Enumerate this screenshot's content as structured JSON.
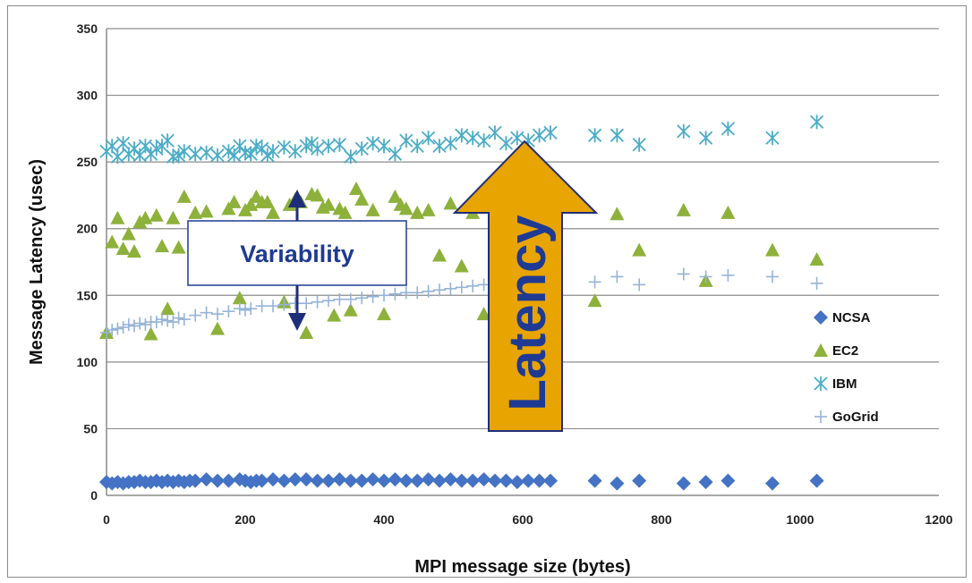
{
  "chart_data": {
    "type": "scatter",
    "title": "",
    "xlabel": "MPI message size (bytes)",
    "ylabel": "Message Latency (usec)",
    "xlim": [
      0,
      1200
    ],
    "ylim": [
      0,
      350
    ],
    "x_ticks": [
      "0",
      "200",
      "400",
      "600",
      "800",
      "1000",
      "1200"
    ],
    "y_ticks": [
      "0",
      "50",
      "100",
      "150",
      "200",
      "250",
      "300",
      "350"
    ],
    "grid": "horizontal",
    "legend_position": "right",
    "series": [
      {
        "name": "NCSA",
        "marker": "diamond",
        "color": "#4472C4",
        "points": [
          [
            0,
            10
          ],
          [
            8,
            9
          ],
          [
            16,
            10
          ],
          [
            24,
            9
          ],
          [
            32,
            10
          ],
          [
            40,
            10
          ],
          [
            48,
            11
          ],
          [
            56,
            10
          ],
          [
            64,
            10
          ],
          [
            72,
            11
          ],
          [
            80,
            10
          ],
          [
            88,
            11
          ],
          [
            96,
            10
          ],
          [
            104,
            11
          ],
          [
            112,
            10
          ],
          [
            120,
            11
          ],
          [
            128,
            11
          ],
          [
            144,
            12
          ],
          [
            160,
            11
          ],
          [
            176,
            11
          ],
          [
            192,
            12
          ],
          [
            200,
            11
          ],
          [
            208,
            10
          ],
          [
            216,
            11
          ],
          [
            224,
            11
          ],
          [
            240,
            12
          ],
          [
            256,
            11
          ],
          [
            272,
            12
          ],
          [
            288,
            12
          ],
          [
            304,
            11
          ],
          [
            320,
            11
          ],
          [
            336,
            12
          ],
          [
            352,
            11
          ],
          [
            368,
            11
          ],
          [
            384,
            12
          ],
          [
            400,
            11
          ],
          [
            416,
            12
          ],
          [
            432,
            11
          ],
          [
            448,
            11
          ],
          [
            464,
            12
          ],
          [
            480,
            11
          ],
          [
            496,
            12
          ],
          [
            512,
            11
          ],
          [
            528,
            11
          ],
          [
            544,
            12
          ],
          [
            560,
            11
          ],
          [
            576,
            11
          ],
          [
            592,
            10
          ],
          [
            608,
            11
          ],
          [
            624,
            11
          ],
          [
            640,
            11
          ],
          [
            704,
            11
          ],
          [
            736,
            9
          ],
          [
            768,
            11
          ],
          [
            832,
            9
          ],
          [
            864,
            10
          ],
          [
            896,
            11
          ],
          [
            960,
            9
          ],
          [
            1024,
            11
          ]
        ]
      },
      {
        "name": "EC2",
        "marker": "triangle",
        "color": "#8DB13B",
        "points": [
          [
            0,
            122
          ],
          [
            8,
            190
          ],
          [
            16,
            208
          ],
          [
            24,
            185
          ],
          [
            32,
            196
          ],
          [
            40,
            183
          ],
          [
            48,
            205
          ],
          [
            56,
            208
          ],
          [
            64,
            121
          ],
          [
            72,
            210
          ],
          [
            80,
            187
          ],
          [
            88,
            140
          ],
          [
            96,
            208
          ],
          [
            104,
            186
          ],
          [
            112,
            224
          ],
          [
            128,
            212
          ],
          [
            144,
            213
          ],
          [
            160,
            125
          ],
          [
            176,
            215
          ],
          [
            184,
            220
          ],
          [
            192,
            148
          ],
          [
            200,
            214
          ],
          [
            208,
            218
          ],
          [
            216,
            224
          ],
          [
            224,
            220
          ],
          [
            232,
            220
          ],
          [
            240,
            212
          ],
          [
            256,
            145
          ],
          [
            264,
            218
          ],
          [
            272,
            222
          ],
          [
            280,
            220
          ],
          [
            288,
            122
          ],
          [
            296,
            226
          ],
          [
            304,
            225
          ],
          [
            312,
            216
          ],
          [
            320,
            218
          ],
          [
            328,
            135
          ],
          [
            336,
            215
          ],
          [
            344,
            212
          ],
          [
            352,
            139
          ],
          [
            360,
            230
          ],
          [
            368,
            222
          ],
          [
            384,
            214
          ],
          [
            400,
            136
          ],
          [
            416,
            224
          ],
          [
            424,
            218
          ],
          [
            432,
            215
          ],
          [
            448,
            212
          ],
          [
            464,
            214
          ],
          [
            480,
            180
          ],
          [
            496,
            219
          ],
          [
            512,
            172
          ],
          [
            528,
            212
          ],
          [
            544,
            136
          ],
          [
            560,
            205
          ],
          [
            576,
            215
          ],
          [
            592,
            210
          ],
          [
            608,
            216
          ],
          [
            640,
            210
          ],
          [
            704,
            146
          ],
          [
            736,
            211
          ],
          [
            768,
            184
          ],
          [
            832,
            214
          ],
          [
            864,
            161
          ],
          [
            896,
            212
          ],
          [
            960,
            184
          ],
          [
            1024,
            177
          ]
        ]
      },
      {
        "name": "IBM",
        "marker": "star",
        "color": "#4BACC6",
        "points": [
          [
            0,
            258
          ],
          [
            8,
            262
          ],
          [
            16,
            254
          ],
          [
            24,
            264
          ],
          [
            32,
            256
          ],
          [
            40,
            260
          ],
          [
            48,
            255
          ],
          [
            56,
            262
          ],
          [
            64,
            256
          ],
          [
            72,
            260
          ],
          [
            80,
            262
          ],
          [
            88,
            266
          ],
          [
            96,
            254
          ],
          [
            104,
            255
          ],
          [
            112,
            258
          ],
          [
            128,
            256
          ],
          [
            144,
            257
          ],
          [
            160,
            255
          ],
          [
            176,
            258
          ],
          [
            184,
            255
          ],
          [
            192,
            262
          ],
          [
            200,
            257
          ],
          [
            208,
            256
          ],
          [
            216,
            262
          ],
          [
            224,
            260
          ],
          [
            232,
            255
          ],
          [
            240,
            258
          ],
          [
            256,
            261
          ],
          [
            272,
            258
          ],
          [
            288,
            262
          ],
          [
            296,
            264
          ],
          [
            304,
            260
          ],
          [
            320,
            262
          ],
          [
            336,
            263
          ],
          [
            352,
            254
          ],
          [
            368,
            260
          ],
          [
            384,
            264
          ],
          [
            400,
            262
          ],
          [
            416,
            256
          ],
          [
            432,
            266
          ],
          [
            448,
            262
          ],
          [
            464,
            268
          ],
          [
            480,
            262
          ],
          [
            496,
            264
          ],
          [
            512,
            270
          ],
          [
            528,
            268
          ],
          [
            544,
            266
          ],
          [
            560,
            272
          ],
          [
            576,
            264
          ],
          [
            592,
            268
          ],
          [
            608,
            266
          ],
          [
            624,
            270
          ],
          [
            640,
            272
          ],
          [
            704,
            270
          ],
          [
            736,
            270
          ],
          [
            768,
            263
          ],
          [
            832,
            273
          ],
          [
            864,
            268
          ],
          [
            896,
            275
          ],
          [
            960,
            268
          ],
          [
            1024,
            280
          ]
        ]
      },
      {
        "name": "GoGrid",
        "marker": "plus",
        "color": "#95B3D7",
        "points": [
          [
            0,
            122
          ],
          [
            8,
            124
          ],
          [
            16,
            125
          ],
          [
            24,
            126
          ],
          [
            32,
            128
          ],
          [
            40,
            127
          ],
          [
            48,
            129
          ],
          [
            56,
            128
          ],
          [
            64,
            130
          ],
          [
            72,
            130
          ],
          [
            80,
            132
          ],
          [
            88,
            131
          ],
          [
            96,
            130
          ],
          [
            104,
            133
          ],
          [
            112,
            132
          ],
          [
            128,
            135
          ],
          [
            144,
            137
          ],
          [
            160,
            136
          ],
          [
            176,
            138
          ],
          [
            192,
            140
          ],
          [
            200,
            139
          ],
          [
            208,
            140
          ],
          [
            224,
            142
          ],
          [
            240,
            142
          ],
          [
            256,
            143
          ],
          [
            272,
            144
          ],
          [
            288,
            144
          ],
          [
            304,
            145
          ],
          [
            320,
            146
          ],
          [
            336,
            147
          ],
          [
            352,
            147
          ],
          [
            368,
            148
          ],
          [
            384,
            149
          ],
          [
            400,
            150
          ],
          [
            416,
            151
          ],
          [
            432,
            152
          ],
          [
            448,
            152
          ],
          [
            464,
            153
          ],
          [
            480,
            154
          ],
          [
            496,
            155
          ],
          [
            512,
            156
          ],
          [
            528,
            157
          ],
          [
            544,
            158
          ],
          [
            704,
            160
          ],
          [
            736,
            164
          ],
          [
            768,
            158
          ],
          [
            832,
            166
          ],
          [
            864,
            164
          ],
          [
            896,
            165
          ],
          [
            960,
            164
          ],
          [
            1024,
            159
          ]
        ]
      }
    ],
    "annotations": {
      "variability_label": "Variability",
      "latency_label": "Latency"
    }
  }
}
